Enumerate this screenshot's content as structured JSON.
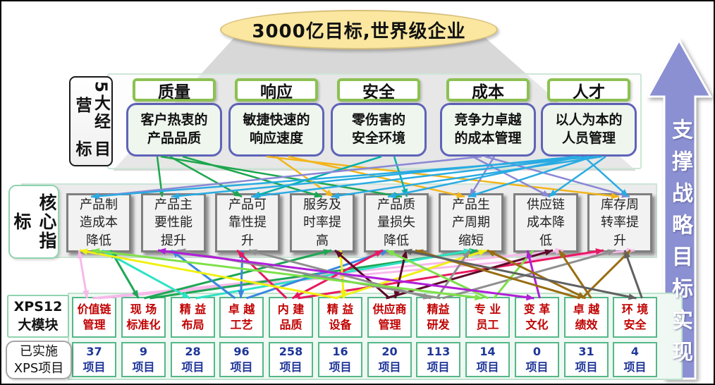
{
  "title": "3000亿目标,世界级企业",
  "side_arrow": "支撑战略目标实现",
  "goals_section": {
    "label_lines": [
      "5大经营",
      "目标"
    ]
  },
  "goals": [
    {
      "name": "质量",
      "desc": [
        "客户热衷的",
        "产品品质"
      ]
    },
    {
      "name": "响应",
      "desc": [
        "敏捷快速的",
        "响应速度"
      ]
    },
    {
      "name": "安全",
      "desc": [
        "零伤害的",
        "安全环境"
      ]
    },
    {
      "name": "成本",
      "desc": [
        "竞争力卓越",
        "的成本管理"
      ]
    },
    {
      "name": "人才",
      "desc": [
        "以人为本的",
        "人员管理"
      ]
    }
  ],
  "core_section": {
    "label": "核心指标"
  },
  "cores": [
    [
      "产品制",
      "造成本",
      "降低"
    ],
    [
      "产品主",
      "要性能",
      "提升"
    ],
    [
      "产品可",
      "靠性提",
      "升"
    ],
    [
      "服务及",
      "时率提",
      "高"
    ],
    [
      "产品质",
      "量损失",
      "降低"
    ],
    [
      "产品生",
      "产周期",
      "缩短"
    ],
    [
      "供应链",
      "成本降",
      "低"
    ],
    [
      "库存周",
      "转率提",
      "升"
    ]
  ],
  "modules_section": {
    "label_lines": [
      "XPS12",
      "大模块"
    ],
    "implemented_lines": [
      "已实施",
      "XPS项目"
    ],
    "unit": "项目"
  },
  "modules": [
    {
      "name": [
        "价值链",
        "管理"
      ],
      "count": "37"
    },
    {
      "name": [
        "现 场",
        "标准化"
      ],
      "count": "9"
    },
    {
      "name": [
        "精 益",
        "布局"
      ],
      "count": "28"
    },
    {
      "name": [
        "卓 越",
        "工艺"
      ],
      "count": "96"
    },
    {
      "name": [
        "内 建",
        "品质"
      ],
      "count": "258"
    },
    {
      "name": [
        "精 益",
        "设备"
      ],
      "count": "16"
    },
    {
      "name": [
        "供应商",
        "管理"
      ],
      "count": "20"
    },
    {
      "name": [
        "精益",
        "研发"
      ],
      "count": "113"
    },
    {
      "name": [
        "专 业",
        "员工"
      ],
      "count": "14"
    },
    {
      "name": [
        "变 革",
        "文化"
      ],
      "count": "0"
    },
    {
      "name": [
        "卓 越",
        "绩效"
      ],
      "count": "31"
    },
    {
      "name": [
        "环 境",
        "安全"
      ],
      "count": "4"
    }
  ],
  "colors": {
    "ellipse_fill": "#fbe7a0",
    "goal_header_border": "#8cc152",
    "goal_desc_border": "#5f63b8",
    "module_border": "#54b888",
    "module_text": "#c00000",
    "count_text": "#1f3699",
    "side_arrow_fill": "#8b90d3",
    "goal_arrow_colors": [
      "#1ca64d",
      "#f2b51c",
      "#00b0ad",
      "#8a87d5",
      "#29abe2"
    ],
    "module_arrow_colors": [
      "#f7b9ea",
      "#1ea755",
      "#2fe2c5",
      "#3a86e0",
      "#e81960",
      "#f0f014",
      "#5c0a2a",
      "#8f8f8f",
      "#7ee04a",
      "#b01fd8",
      "#996d12",
      "#606060"
    ]
  },
  "connections": {
    "goal_to_core": [
      [
        0,
        1
      ],
      [
        0,
        2
      ],
      [
        0,
        3
      ],
      [
        0,
        4
      ],
      [
        1,
        3
      ],
      [
        1,
        5
      ],
      [
        1,
        7
      ],
      [
        2,
        2
      ],
      [
        2,
        4
      ],
      [
        3,
        0
      ],
      [
        3,
        5
      ],
      [
        3,
        6
      ],
      [
        3,
        7
      ],
      [
        4,
        0
      ],
      [
        4,
        1
      ],
      [
        4,
        2
      ],
      [
        4,
        3
      ],
      [
        4,
        4
      ],
      [
        4,
        5
      ],
      [
        4,
        6
      ],
      [
        4,
        7
      ]
    ],
    "module_to_core": [
      [
        0,
        0
      ],
      [
        0,
        6
      ],
      [
        0,
        7
      ],
      [
        1,
        0
      ],
      [
        1,
        3
      ],
      [
        1,
        5
      ],
      [
        2,
        0
      ],
      [
        2,
        5
      ],
      [
        3,
        1
      ],
      [
        3,
        2
      ],
      [
        3,
        4
      ],
      [
        4,
        2
      ],
      [
        4,
        4
      ],
      [
        4,
        7
      ],
      [
        5,
        0
      ],
      [
        5,
        3
      ],
      [
        5,
        5
      ],
      [
        6,
        3
      ],
      [
        6,
        4
      ],
      [
        6,
        6
      ],
      [
        7,
        1
      ],
      [
        7,
        2
      ],
      [
        7,
        5
      ],
      [
        7,
        7
      ],
      [
        8,
        0
      ],
      [
        8,
        4
      ],
      [
        8,
        6
      ],
      [
        9,
        1
      ],
      [
        9,
        6
      ],
      [
        10,
        4
      ],
      [
        10,
        5
      ],
      [
        10,
        6
      ],
      [
        10,
        7
      ],
      [
        11,
        4
      ],
      [
        11,
        7
      ]
    ]
  }
}
